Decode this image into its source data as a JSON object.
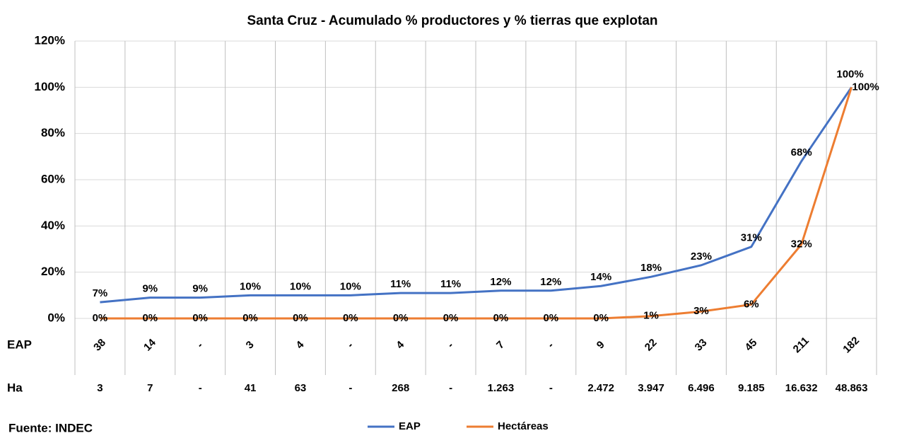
{
  "chart_data": {
    "type": "line",
    "title": "Santa Cruz - Acumulado  % productores y % tierras que explotan",
    "categories_name": "EAP",
    "categories": [
      "38",
      "14",
      "-",
      "3",
      "4",
      "-",
      "4",
      "-",
      "7",
      "-",
      "9",
      "22",
      "33",
      "45",
      "211",
      "182"
    ],
    "second_row": {
      "name": "Ha",
      "labels": [
        "3",
        "7",
        "-",
        "41",
        "63",
        "-",
        "268",
        "-",
        "1.263",
        "-",
        "2.472",
        "3.947",
        "6.496",
        "9.185",
        "16.632",
        "48.863"
      ]
    },
    "series": [
      {
        "name": "EAP",
        "color": "#4472c4",
        "values": [
          7,
          9,
          9,
          10,
          10,
          10,
          11,
          11,
          12,
          12,
          14,
          18,
          23,
          31,
          68,
          100
        ],
        "value_labels": [
          "7%",
          "9%",
          "9%",
          "10%",
          "10%",
          "10%",
          "11%",
          "11%",
          "12%",
          "12%",
          "14%",
          "18%",
          "23%",
          "31%",
          "68%",
          "100%"
        ]
      },
      {
        "name": "Hectáreas",
        "color": "#ed7d31",
        "values": [
          0,
          0,
          0,
          0,
          0,
          0,
          0,
          0,
          0,
          0,
          0,
          1,
          3,
          6,
          32,
          100
        ],
        "value_labels": [
          "0%",
          "0%",
          "0%",
          "0%",
          "0%",
          "0%",
          "0%",
          "0%",
          "0%",
          "0%",
          "0%",
          "1%",
          "3%",
          "6%",
          "32%",
          "100%"
        ]
      }
    ],
    "ylim": [
      0,
      120
    ],
    "yticks": [
      {
        "value": 0,
        "label": "0%"
      },
      {
        "value": 20,
        "label": "20%"
      },
      {
        "value": 40,
        "label": "40%"
      },
      {
        "value": 60,
        "label": "60%"
      },
      {
        "value": 80,
        "label": "80%"
      },
      {
        "value": 100,
        "label": "100%"
      },
      {
        "value": 120,
        "label": "120%"
      }
    ],
    "grid": true,
    "legend": "bottom",
    "source": "Fuente: INDEC"
  }
}
